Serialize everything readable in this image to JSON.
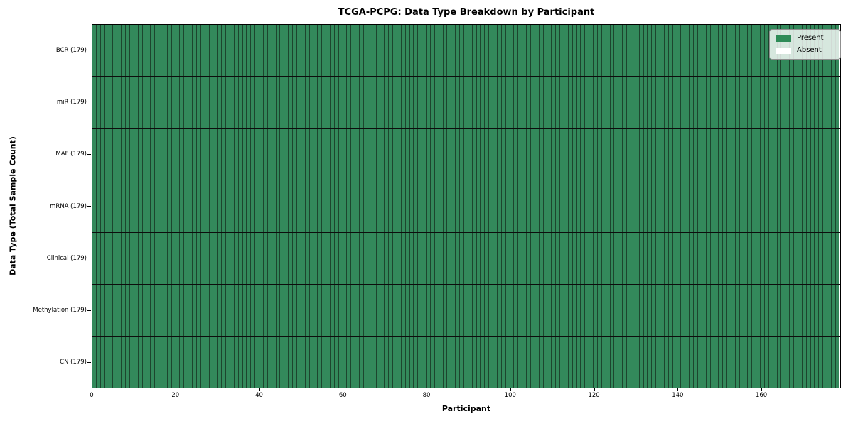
{
  "chart_data": {
    "type": "heatmap",
    "title": "TCGA-PCPG: Data Type Breakdown by Participant",
    "xlabel": "Participant",
    "ylabel": "Data Type (Total Sample Count)",
    "x_range": [
      0,
      179
    ],
    "n_participants": 179,
    "x_ticks": [
      0,
      20,
      40,
      60,
      80,
      100,
      120,
      140,
      160
    ],
    "grid": "cell-borders",
    "rows": [
      {
        "label": "BCR (179)",
        "data_type": "BCR",
        "total_samples": 179,
        "present_count": 179,
        "absent_count": 0
      },
      {
        "label": "miR (179)",
        "data_type": "miR",
        "total_samples": 179,
        "present_count": 179,
        "absent_count": 0
      },
      {
        "label": "MAF (179)",
        "data_type": "MAF",
        "total_samples": 179,
        "present_count": 179,
        "absent_count": 0
      },
      {
        "label": "mRNA (179)",
        "data_type": "mRNA",
        "total_samples": 179,
        "present_count": 179,
        "absent_count": 0
      },
      {
        "label": "Clinical (179)",
        "data_type": "Clinical",
        "total_samples": 179,
        "present_count": 179,
        "absent_count": 0
      },
      {
        "label": "Methylation (179)",
        "data_type": "Methylation",
        "total_samples": 179,
        "present_count": 179,
        "absent_count": 0
      },
      {
        "label": "CN (179)",
        "data_type": "CN",
        "total_samples": 179,
        "present_count": 179,
        "absent_count": 0
      }
    ],
    "legend": {
      "position": "upper-right",
      "entries": [
        {
          "label": "Present",
          "color": "#2e8b57"
        },
        {
          "label": "Absent",
          "color": "#ffffff"
        }
      ]
    },
    "colors": {
      "present": "#33895b",
      "absent": "#ffffff",
      "cell_border": "#1d452e",
      "row_separator": "#0d0d0d",
      "axis": "#000000",
      "legend_background": "#e7efe8"
    }
  }
}
